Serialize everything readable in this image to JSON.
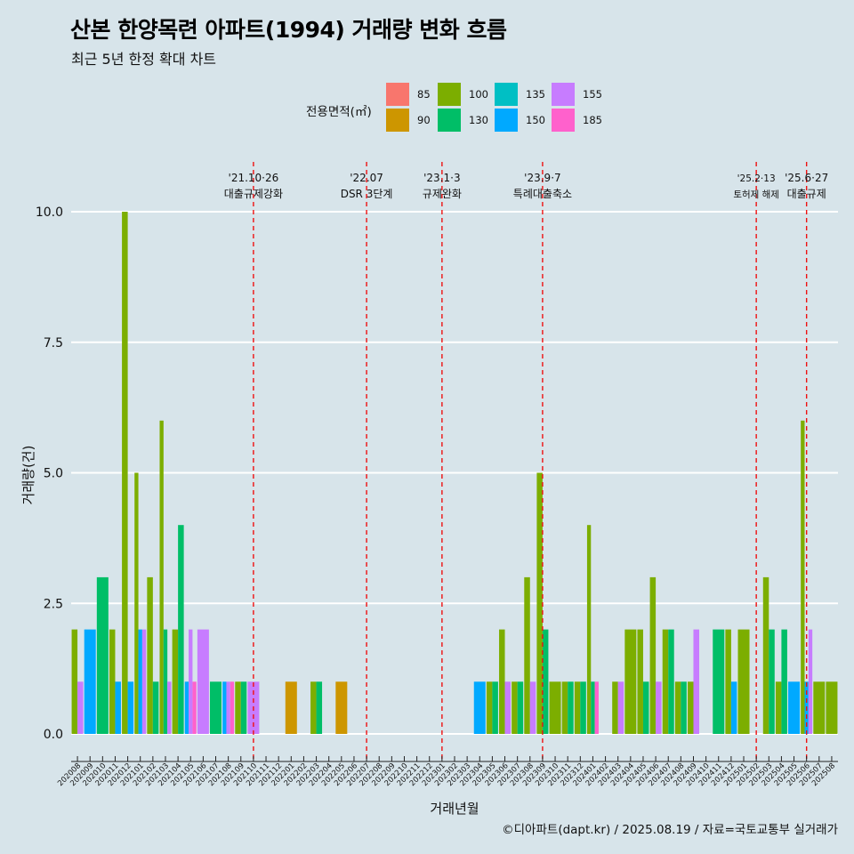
{
  "header": {
    "title": "산본 한양목련 아파트(1994) 거래량 변화 흐름",
    "subtitle": "최근 5년 한정 확대 차트"
  },
  "footer": {
    "credit": "©디아파트(dapt.kr) / 2025.08.19 / 자료=국토교통부 실거래가"
  },
  "legend": {
    "title": "전용면적(㎡)",
    "items": [
      {
        "label": "85",
        "color": "#f8766d"
      },
      {
        "label": "90",
        "color": "#cd9600"
      },
      {
        "label": "100",
        "color": "#7cae00"
      },
      {
        "label": "130",
        "color": "#00be67"
      },
      {
        "label": "135",
        "color": "#00bfc4"
      },
      {
        "label": "150",
        "color": "#00a9ff"
      },
      {
        "label": "155",
        "color": "#c77cff"
      },
      {
        "label": "185",
        "color": "#ff61cc"
      }
    ]
  },
  "chart_data": {
    "type": "bar",
    "stacking": "dodge",
    "title": "산본 한양목련 아파트(1994) 거래량 변화 흐름",
    "subtitle": "최근 5년 한정 확대 차트",
    "xlabel": "거래년월",
    "ylabel": "거래량(건)",
    "ylim": [
      0,
      10
    ],
    "yticks": [
      0.0,
      2.5,
      5.0,
      7.5,
      10.0
    ],
    "ytick_labels": [
      "0.0",
      "2.5",
      "5.0",
      "7.5",
      "10.0"
    ],
    "grid": "horizontal",
    "categories": [
      "202008",
      "202009",
      "202010",
      "202011",
      "202012",
      "202101",
      "202102",
      "202103",
      "202104",
      "202105",
      "202106",
      "202107",
      "202108",
      "202109",
      "202110",
      "202111",
      "202112",
      "202201",
      "202202",
      "202203",
      "202204",
      "202205",
      "202206",
      "202207",
      "202208",
      "202209",
      "202210",
      "202211",
      "202212",
      "202301",
      "202302",
      "202303",
      "202304",
      "202305",
      "202306",
      "202307",
      "202308",
      "202309",
      "202310",
      "202311",
      "202312",
      "202401",
      "202402",
      "202403",
      "202404",
      "202405",
      "202406",
      "202407",
      "202408",
      "202409",
      "202410",
      "202411",
      "202412",
      "202501",
      "202502",
      "202503",
      "202504",
      "202505",
      "202506",
      "202507",
      "202508"
    ],
    "series": [
      {
        "name": "85",
        "color": "#f8766d",
        "values": [
          0,
          0,
          0,
          0,
          0,
          0,
          0,
          0,
          0,
          0,
          0,
          0,
          0,
          0,
          0,
          0,
          0,
          0,
          0,
          0,
          0,
          0,
          0,
          0,
          0,
          0,
          0,
          0,
          0,
          0,
          0,
          0,
          0,
          0,
          0,
          0,
          0,
          0,
          0,
          0,
          0,
          0,
          0,
          0,
          0,
          0,
          0,
          0,
          0,
          0,
          0,
          0,
          0,
          0,
          0,
          0,
          0,
          0,
          0,
          0,
          0
        ]
      },
      {
        "name": "90",
        "color": "#cd9600",
        "values": [
          0,
          0,
          0,
          0,
          0,
          0,
          0,
          0,
          0,
          0,
          0,
          0,
          0,
          0,
          0,
          0,
          0,
          1,
          0,
          0,
          0,
          1,
          0,
          0,
          0,
          0,
          0,
          0,
          0,
          0,
          0,
          0,
          0,
          0,
          0,
          0,
          0,
          0,
          0,
          0,
          0,
          0,
          0,
          0,
          0,
          0,
          0,
          0,
          0,
          0,
          0,
          0,
          0,
          0,
          0,
          0,
          0,
          0,
          0,
          0,
          0
        ]
      },
      {
        "name": "100",
        "color": "#7cae00",
        "values": [
          2,
          0,
          0,
          2,
          10,
          5,
          3,
          6,
          2,
          0,
          0,
          0,
          0,
          1,
          0,
          0,
          0,
          0,
          0,
          1,
          0,
          0,
          0,
          0,
          0,
          0,
          0,
          0,
          0,
          0,
          0,
          0,
          0,
          1,
          2,
          1,
          3,
          5,
          1,
          1,
          1,
          4,
          0,
          1,
          2,
          2,
          3,
          2,
          1,
          1,
          0,
          0,
          2,
          2,
          0,
          3,
          1,
          0,
          6,
          1,
          1
        ]
      },
      {
        "name": "130",
        "color": "#00be67",
        "values": [
          0,
          0,
          3,
          0,
          0,
          0,
          1,
          2,
          4,
          0,
          0,
          1,
          0,
          1,
          0,
          0,
          0,
          0,
          0,
          1,
          0,
          0,
          0,
          0,
          0,
          0,
          0,
          0,
          0,
          0,
          0,
          0,
          0,
          1,
          0,
          1,
          0,
          2,
          0,
          1,
          1,
          1,
          0,
          0,
          0,
          1,
          0,
          2,
          1,
          0,
          0,
          2,
          0,
          0,
          0,
          2,
          2,
          0,
          0,
          0,
          0
        ]
      },
      {
        "name": "135",
        "color": "#00bfc4",
        "values": [
          0,
          0,
          0,
          0,
          0,
          0,
          0,
          0,
          0,
          0,
          0,
          0,
          0,
          0,
          0,
          0,
          0,
          0,
          0,
          0,
          0,
          0,
          0,
          0,
          0,
          0,
          0,
          0,
          0,
          0,
          0,
          0,
          0,
          0,
          0,
          0,
          0,
          0,
          0,
          0,
          0,
          0,
          0,
          0,
          0,
          0,
          0,
          0,
          0,
          0,
          0,
          0,
          0,
          0,
          0,
          0,
          0,
          0,
          0,
          0,
          0
        ]
      },
      {
        "name": "150",
        "color": "#00a9ff",
        "values": [
          0,
          2,
          0,
          1,
          1,
          2,
          0,
          0,
          0,
          1,
          0,
          0,
          1,
          0,
          0,
          0,
          0,
          0,
          0,
          0,
          0,
          0,
          0,
          0,
          0,
          0,
          0,
          0,
          0,
          0,
          0,
          0,
          1,
          0,
          0,
          0,
          0,
          0,
          0,
          0,
          0,
          0,
          0,
          0,
          0,
          0,
          0,
          0,
          0,
          0,
          0,
          0,
          1,
          0,
          0,
          0,
          0,
          1,
          1,
          0,
          0
        ]
      },
      {
        "name": "155",
        "color": "#c77cff",
        "values": [
          1,
          0,
          0,
          0,
          0,
          2,
          0,
          1,
          0,
          2,
          2,
          0,
          1,
          0,
          1,
          0,
          0,
          0,
          0,
          0,
          0,
          0,
          0,
          0,
          0,
          0,
          0,
          0,
          0,
          0,
          0,
          0,
          0,
          0,
          1,
          0,
          1,
          0,
          0,
          0,
          0,
          0,
          0,
          1,
          0,
          0,
          1,
          0,
          0,
          2,
          0,
          0,
          0,
          0,
          0,
          0,
          0,
          0,
          2,
          0,
          0
        ]
      },
      {
        "name": "185",
        "color": "#ff61cc",
        "values": [
          0,
          0,
          0,
          0,
          0,
          0,
          0,
          0,
          0,
          1,
          0,
          0,
          1,
          0,
          0,
          0,
          0,
          0,
          0,
          0,
          0,
          0,
          0,
          0,
          0,
          0,
          0,
          0,
          0,
          0,
          0,
          0,
          0,
          0,
          0,
          0,
          0,
          0,
          0,
          0,
          0,
          1,
          0,
          0,
          0,
          0,
          0,
          0,
          0,
          0,
          0,
          0,
          0,
          0,
          0,
          0,
          0,
          0,
          0,
          0,
          0
        ]
      }
    ],
    "events": [
      {
        "label": "'21.10·26",
        "desc": "대출규제강화",
        "at": "202110"
      },
      {
        "label": "'22.07",
        "desc": "DSR 3단계",
        "at": "202207"
      },
      {
        "label": "'23.1·3",
        "desc": "규제완화",
        "at": "202301"
      },
      {
        "label": "'23.9·7",
        "desc": "특례대출축소",
        "at": "202309"
      },
      {
        "label": "'25.2·13",
        "desc": "토허제 해제",
        "at": "202502"
      },
      {
        "label": "'25.6·27",
        "desc": "대출규제",
        "at": "202506"
      }
    ]
  }
}
